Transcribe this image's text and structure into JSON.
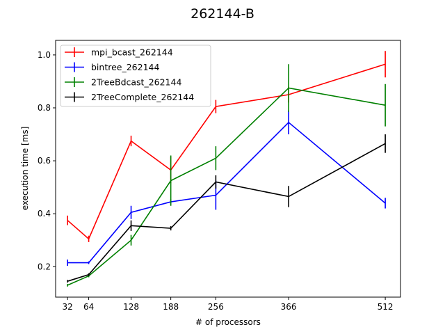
{
  "chart_data": {
    "type": "line",
    "title": "262144-B",
    "xlabel": "# of processors",
    "ylabel": "execution time [ms]",
    "x": [
      32,
      64,
      128,
      188,
      256,
      366,
      512
    ],
    "xticks": [
      32,
      64,
      128,
      188,
      256,
      366,
      512
    ],
    "xlim": [
      14,
      535
    ],
    "ylim": [
      0.085,
      1.055
    ],
    "yticks": [
      0.2,
      0.4,
      0.6,
      0.8,
      1.0
    ],
    "ytick_labels": [
      "0.2",
      "0.4",
      "0.6",
      "0.8",
      "1.0"
    ],
    "grid": false,
    "legend_position": "top-left",
    "series": [
      {
        "name": "mpi_bcast_262144",
        "color": "#ff0000",
        "values": [
          0.375,
          0.305,
          0.675,
          0.565,
          0.805,
          0.85,
          0.965
        ],
        "errors": [
          0.018,
          0.012,
          0.02,
          0.05,
          0.025,
          0.03,
          0.05
        ]
      },
      {
        "name": "bintree_262144",
        "color": "#0000ff",
        "values": [
          0.215,
          0.215,
          0.405,
          0.445,
          0.47,
          0.745,
          0.44
        ],
        "errors": [
          0.012,
          0.005,
          0.025,
          0.01,
          0.055,
          0.045,
          0.02
        ]
      },
      {
        "name": "2TreeBdcast_262144",
        "color": "#008000",
        "values": [
          0.13,
          0.165,
          0.3,
          0.525,
          0.61,
          0.875,
          0.81
        ],
        "errors": [
          0.005,
          0.005,
          0.02,
          0.095,
          0.045,
          0.09,
          0.08
        ]
      },
      {
        "name": "2TreeComplete_262144",
        "color": "#000000",
        "values": [
          0.145,
          0.17,
          0.355,
          0.345,
          0.52,
          0.465,
          0.665
        ],
        "errors": [
          0.005,
          0.005,
          0.02,
          0.008,
          0.025,
          0.04,
          0.035
        ]
      }
    ]
  }
}
